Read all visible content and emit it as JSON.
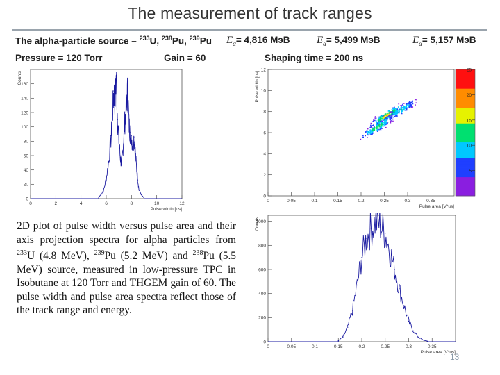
{
  "slide": {
    "title": "The measurement of track ranges",
    "page_number": "13",
    "header": {
      "source_prefix": "The alpha-particle source – ",
      "iso1_mass": "233",
      "iso1_sym": "U, ",
      "iso2_mass": "238",
      "iso2_sym": "Pu, ",
      "iso3_mass": "239",
      "iso3_sym": "Pu",
      "e1_sym": "E",
      "e1_sub": "α",
      "e1_val": "= 4,816 МэВ",
      "e2_sym": "E",
      "e2_sub": "α",
      "e2_val": "= 5,499 МэВ",
      "e3_sym": "E",
      "e3_sub": "α",
      "e3_val": "= 5,157 МэВ",
      "pressure": "Pressure = 120 Torr",
      "gain": "Gain = 60",
      "shaping": "Shaping time = 200 ns"
    },
    "description": {
      "t1": "2D plot of pulse width versus pulse area and their axis projection spectra for alpha particles from ",
      "m1": "233",
      "t2": "U (4.8 MeV), ",
      "m2": "239",
      "t3": "Pu (5.2 MeV) and ",
      "m3": "238",
      "t4": "Pu (5.5 MeV) source, measured in low-pressure TPC in Isobutane at 120 Torr and THGEM gain of 60. The pulse width and pulse area spectra reflect those of the track range and energy."
    }
  },
  "chart_data": [
    {
      "type": "line",
      "id": "pulse-width-spectrum",
      "xlabel": "Pulse width [us]",
      "ylabel": "Counts",
      "xlim": [
        0,
        12
      ],
      "ylim": [
        0,
        180
      ],
      "xticks": [
        0,
        2,
        4,
        6,
        8,
        10,
        12
      ],
      "yticks": [
        0,
        20,
        40,
        60,
        80,
        100,
        120,
        140,
        160
      ],
      "line_color": "#1a1aa0",
      "x": [
        5.4,
        5.6,
        5.8,
        6.0,
        6.2,
        6.4,
        6.5,
        6.6,
        6.7,
        6.8,
        6.9,
        7.0,
        7.1,
        7.2,
        7.3,
        7.4,
        7.5,
        7.6,
        7.7,
        7.8,
        7.9,
        8.0,
        8.1,
        8.2,
        8.3,
        8.4,
        8.5,
        8.6,
        8.8,
        9.0
      ],
      "y": [
        2,
        6,
        12,
        28,
        52,
        88,
        118,
        150,
        135,
        172,
        110,
        82,
        60,
        48,
        62,
        90,
        112,
        128,
        152,
        104,
        92,
        88,
        72,
        86,
        66,
        44,
        26,
        12,
        5,
        1
      ]
    },
    {
      "type": "heatmap",
      "id": "width-vs-area-2d",
      "xlabel": "Pulse area [V*us]",
      "ylabel": "Pulse width [us]",
      "xlim": [
        0,
        0.4
      ],
      "ylim": [
        0,
        12
      ],
      "xticks": [
        0,
        0.05,
        0.1,
        0.15,
        0.2,
        0.25,
        0.3,
        0.35
      ],
      "yticks": [
        0,
        2,
        4,
        6,
        8,
        10,
        12
      ],
      "color_scale": {
        "min": 0,
        "max": 25,
        "ticks": [
          5,
          10,
          15,
          20,
          25
        ],
        "colors": [
          "#8a1ee0",
          "#1f3fff",
          "#00c8ff",
          "#00e070",
          "#e6f200",
          "#ff8c00",
          "#ff1010"
        ]
      },
      "clusters": [
        {
          "area": 0.255,
          "width": 7.7,
          "intensity": 22
        },
        {
          "area": 0.235,
          "width": 6.6,
          "intensity": 18
        },
        {
          "area": 0.285,
          "width": 8.2,
          "intensity": 14
        }
      ]
    },
    {
      "type": "line",
      "id": "pulse-area-spectrum",
      "xlabel": "Pulse area [V*us]",
      "ylabel": "Counts",
      "xlim": [
        0,
        0.4
      ],
      "ylim": [
        0,
        1050
      ],
      "xticks": [
        0,
        0.05,
        0.1,
        0.15,
        0.2,
        0.25,
        0.3,
        0.35
      ],
      "yticks": [
        0,
        200,
        400,
        600,
        800,
        1000
      ],
      "line_color": "#1a1aa0",
      "x": [
        0.15,
        0.16,
        0.17,
        0.18,
        0.19,
        0.2,
        0.21,
        0.22,
        0.23,
        0.24,
        0.25,
        0.26,
        0.27,
        0.28,
        0.29,
        0.3,
        0.31,
        0.32,
        0.33,
        0.34
      ],
      "y": [
        8,
        40,
        120,
        260,
        470,
        700,
        860,
        940,
        1000,
        970,
        900,
        760,
        600,
        440,
        300,
        170,
        90,
        40,
        15,
        4
      ]
    }
  ]
}
